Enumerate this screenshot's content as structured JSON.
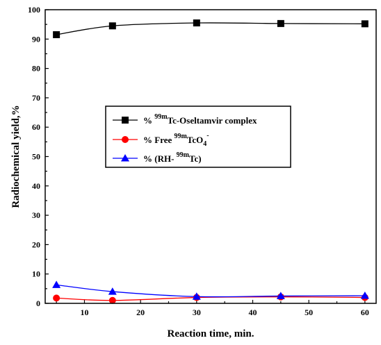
{
  "chart_data": {
    "type": "line",
    "xlabel": "Reaction time, min.",
    "ylabel": "Radiochemical yield,%",
    "xlim": [
      3,
      62
    ],
    "ylim": [
      0,
      100
    ],
    "xticks": [
      "10",
      "20",
      "30",
      "40",
      "50",
      "60"
    ],
    "yticks": [
      "0",
      "10",
      "20",
      "30",
      "40",
      "50",
      "60",
      "70",
      "80",
      "90",
      "100"
    ],
    "legend_position": "center",
    "series": [
      {
        "name": "% 99mTc-Oseltamvir complex",
        "legend": {
          "pre": "%",
          "sup": "99m",
          "post": "Tc-Oseltamvir complex",
          "sub": ""
        },
        "color": "#000000",
        "marker": "square",
        "x": [
          5,
          15,
          30,
          45,
          60
        ],
        "y": [
          91.5,
          94.5,
          95.5,
          95.3,
          95.2
        ]
      },
      {
        "name": "% Free 99mTcO4-",
        "legend": {
          "pre": "%  Free",
          "sup": "99m",
          "post": "TcO",
          "sub": "4",
          "sup2": "-"
        },
        "color": "#ff0000",
        "marker": "circle",
        "x": [
          5,
          15,
          30,
          45,
          60
        ],
        "y": [
          1.8,
          1.0,
          2.0,
          2.2,
          2.0
        ]
      },
      {
        "name": "% (RH-99mTc)",
        "legend": {
          "pre": "%   (RH-",
          "sup": "99m",
          "post": "Tc)",
          "sub": ""
        },
        "color": "#0000ff",
        "marker": "triangle",
        "x": [
          5,
          15,
          30,
          45,
          60
        ],
        "y": [
          6.3,
          4.0,
          2.3,
          2.5,
          2.6
        ]
      }
    ]
  }
}
